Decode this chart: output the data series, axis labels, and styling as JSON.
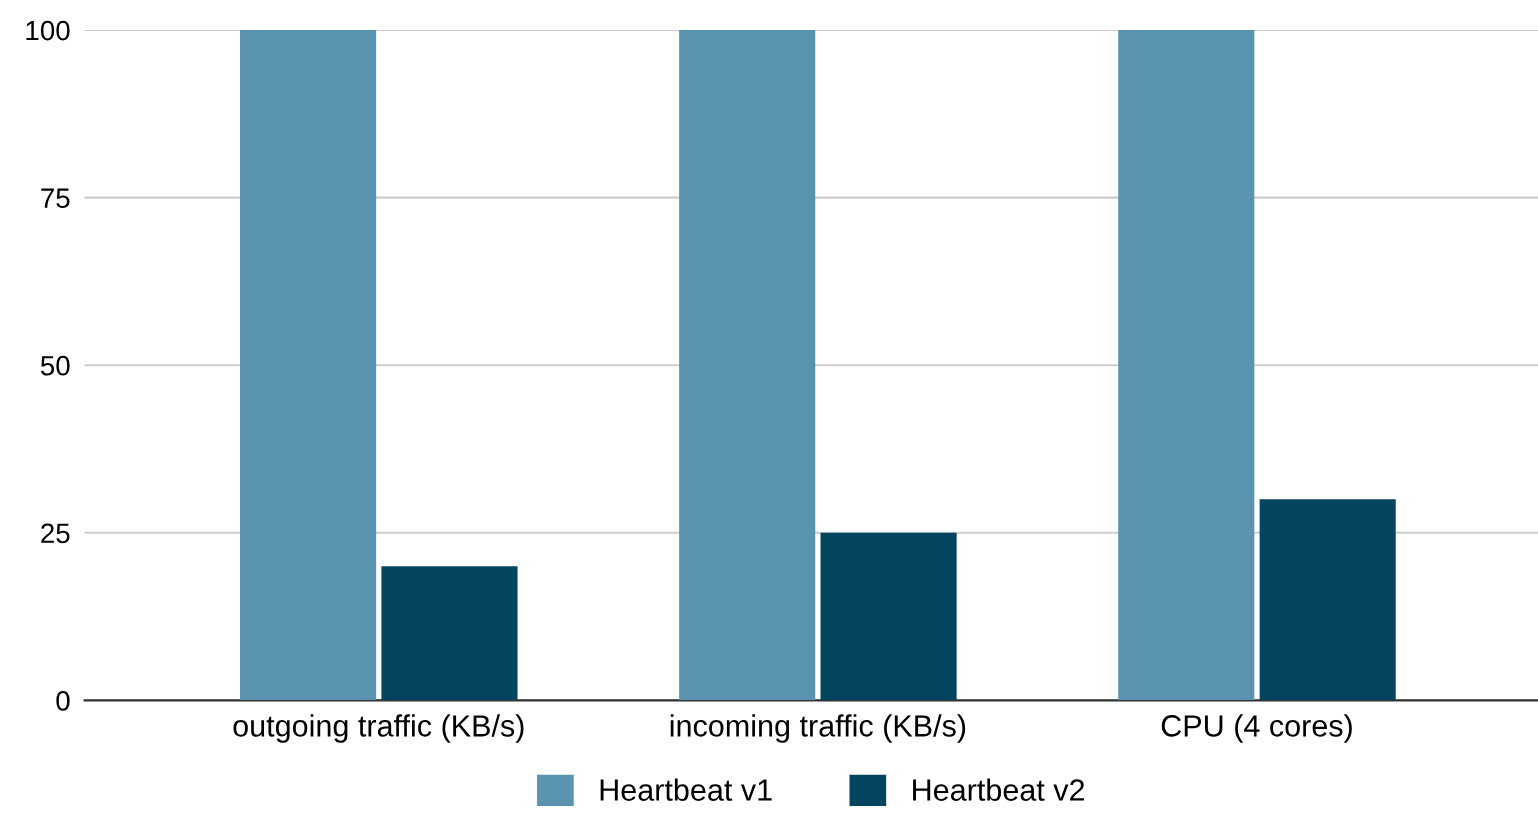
{
  "chart_data": {
    "type": "bar",
    "categories": [
      "outgoing traffic (KB/s)",
      "incoming traffic (KB/s)",
      "CPU (4 cores)"
    ],
    "series": [
      {
        "name": "Heartbeat v1",
        "color": "#5a93b0",
        "values": [
          100,
          100,
          100
        ]
      },
      {
        "name": "Heartbeat v2",
        "color": "#03455f",
        "values": [
          20,
          25,
          30
        ]
      }
    ],
    "ylim": [
      0,
      100
    ],
    "yticks": [
      0,
      25,
      50,
      75,
      100
    ],
    "grid": "y",
    "legend": "bottom"
  }
}
